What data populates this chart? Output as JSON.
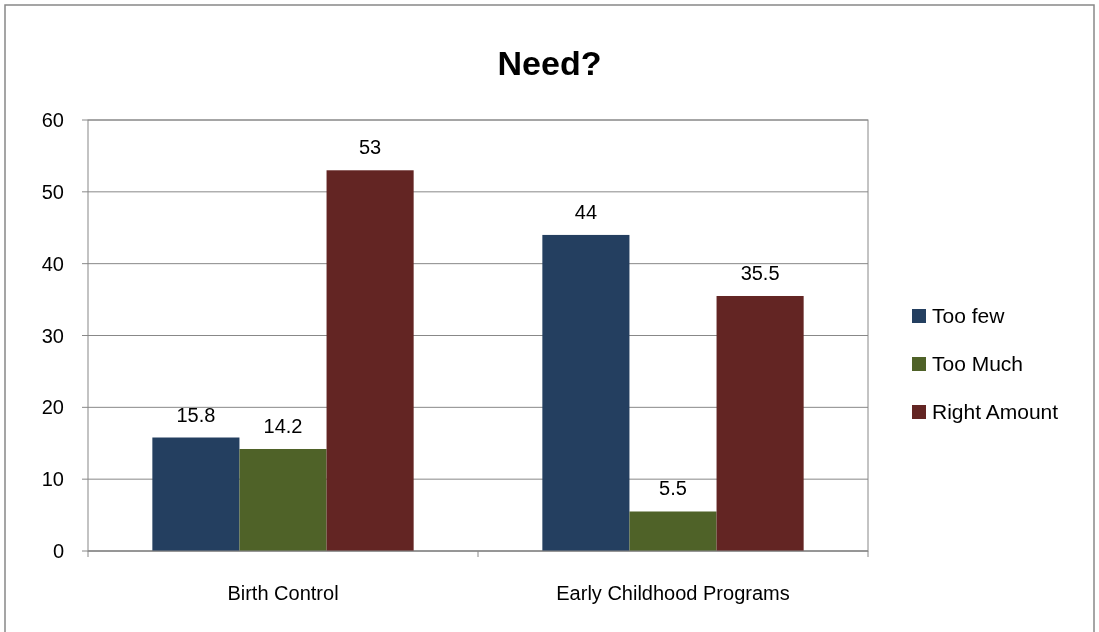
{
  "chart_data": {
    "type": "bar",
    "title": "Need?",
    "categories": [
      "Birth Control",
      "Early Childhood Programs"
    ],
    "series": [
      {
        "name": "Too few",
        "color": "#243f60",
        "values": [
          15.8,
          44
        ]
      },
      {
        "name": "Too Much",
        "color": "#4f6228",
        "values": [
          14.2,
          5.5
        ]
      },
      {
        "name": "Right Amount",
        "color": "#632523",
        "values": [
          53,
          35.5
        ]
      }
    ],
    "ylim": [
      0,
      60
    ],
    "yticks": [
      0,
      10,
      20,
      30,
      40,
      50,
      60
    ],
    "grid": "y",
    "legend": "right",
    "data_labels": true
  }
}
